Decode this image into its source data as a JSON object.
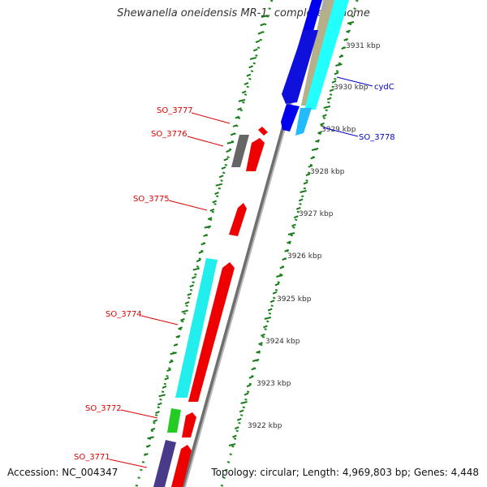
{
  "title": "Shewanella oneidensis MR-1, complete genome",
  "accession_text": "Accession: NC_004347",
  "topology_text": "Topology: circular; Length: 4,969,803 bp; Genes: 4,448",
  "colors": {
    "left_gene_label": "#dd0000",
    "right_gene_label": "#0000cc",
    "tick": "#1a7a1a",
    "strand_line": "#8a8a8a"
  },
  "scale_labels": [
    "3931 kbp",
    "3930 kbp",
    "3929 kbp",
    "3928 kbp",
    "3927 kbp",
    "3926 kbp",
    "3925 kbp",
    "3924 kbp",
    "3923 kbp",
    "3922 kbp"
  ],
  "left_gene_labels": [
    "SO_3777",
    "SO_3776",
    "SO_3775",
    "SO_3774",
    "SO_3772",
    "SO_3771"
  ],
  "right_gene_labels": [
    "cydC",
    "SO_3778"
  ]
}
